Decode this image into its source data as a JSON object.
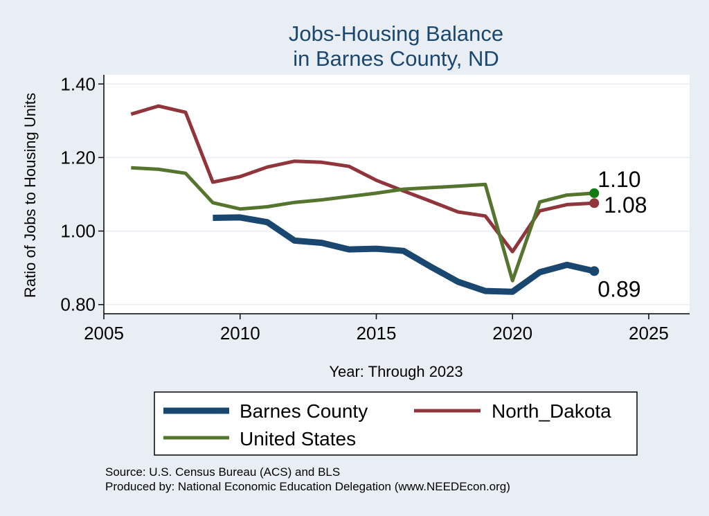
{
  "chart_data": {
    "type": "line",
    "title_line1": "Jobs-Housing Balance",
    "title_line2": "in Barnes County, ND",
    "xlabel": "Year: Through 2023",
    "ylabel": "Ratio of Jobs to Housing Units",
    "xlim": [
      2005,
      2026.5
    ],
    "ylim": [
      0.775,
      1.425
    ],
    "x_ticks": [
      2005,
      2010,
      2015,
      2020,
      2025
    ],
    "y_ticks": [
      0.8,
      1.0,
      1.2,
      1.4
    ],
    "y_tick_labels": [
      "0.80",
      "1.00",
      "1.20",
      "1.40"
    ],
    "grid": true,
    "series": [
      {
        "name": "Barnes County",
        "color": "#1a476f",
        "x": [
          2009,
          2010,
          2011,
          2012,
          2013,
          2014,
          2015,
          2016,
          2017,
          2018,
          2019,
          2020,
          2021,
          2022,
          2023
        ],
        "values": [
          1.036,
          1.037,
          1.024,
          0.974,
          0.968,
          0.95,
          0.952,
          0.946,
          0.903,
          0.862,
          0.837,
          0.835,
          0.888,
          0.908,
          0.891
        ],
        "end_label": "0.89"
      },
      {
        "name": "North_Dakota",
        "color": "#90353b",
        "x": [
          2006,
          2007,
          2008,
          2009,
          2010,
          2011,
          2012,
          2013,
          2014,
          2015,
          2016,
          2017,
          2018,
          2019,
          2020,
          2021,
          2022,
          2023
        ],
        "values": [
          1.318,
          1.34,
          1.323,
          1.133,
          1.148,
          1.174,
          1.19,
          1.187,
          1.176,
          1.138,
          1.109,
          1.081,
          1.052,
          1.041,
          0.944,
          1.055,
          1.072,
          1.076
        ],
        "end_label": "1.08"
      },
      {
        "name": "United States",
        "color": "#55752f",
        "x": [
          2006,
          2007,
          2008,
          2009,
          2010,
          2011,
          2012,
          2013,
          2014,
          2015,
          2016,
          2017,
          2018,
          2019,
          2020,
          2021,
          2022,
          2023
        ],
        "values": [
          1.172,
          1.168,
          1.157,
          1.077,
          1.06,
          1.066,
          1.078,
          1.085,
          1.094,
          1.103,
          1.114,
          1.118,
          1.122,
          1.127,
          0.865,
          1.079,
          1.098,
          1.103
        ],
        "end_label": "1.10",
        "end_marker_color": "#117a11"
      }
    ],
    "legend": {
      "position": "bottom",
      "entries": [
        "Barnes County",
        "North_Dakota",
        "United States"
      ]
    },
    "notes": [
      "Source: U.S. Census Bureau (ACS) and BLS",
      "Produced by: National Economic Education Delegation (www.NEEDEcon.org)"
    ]
  }
}
